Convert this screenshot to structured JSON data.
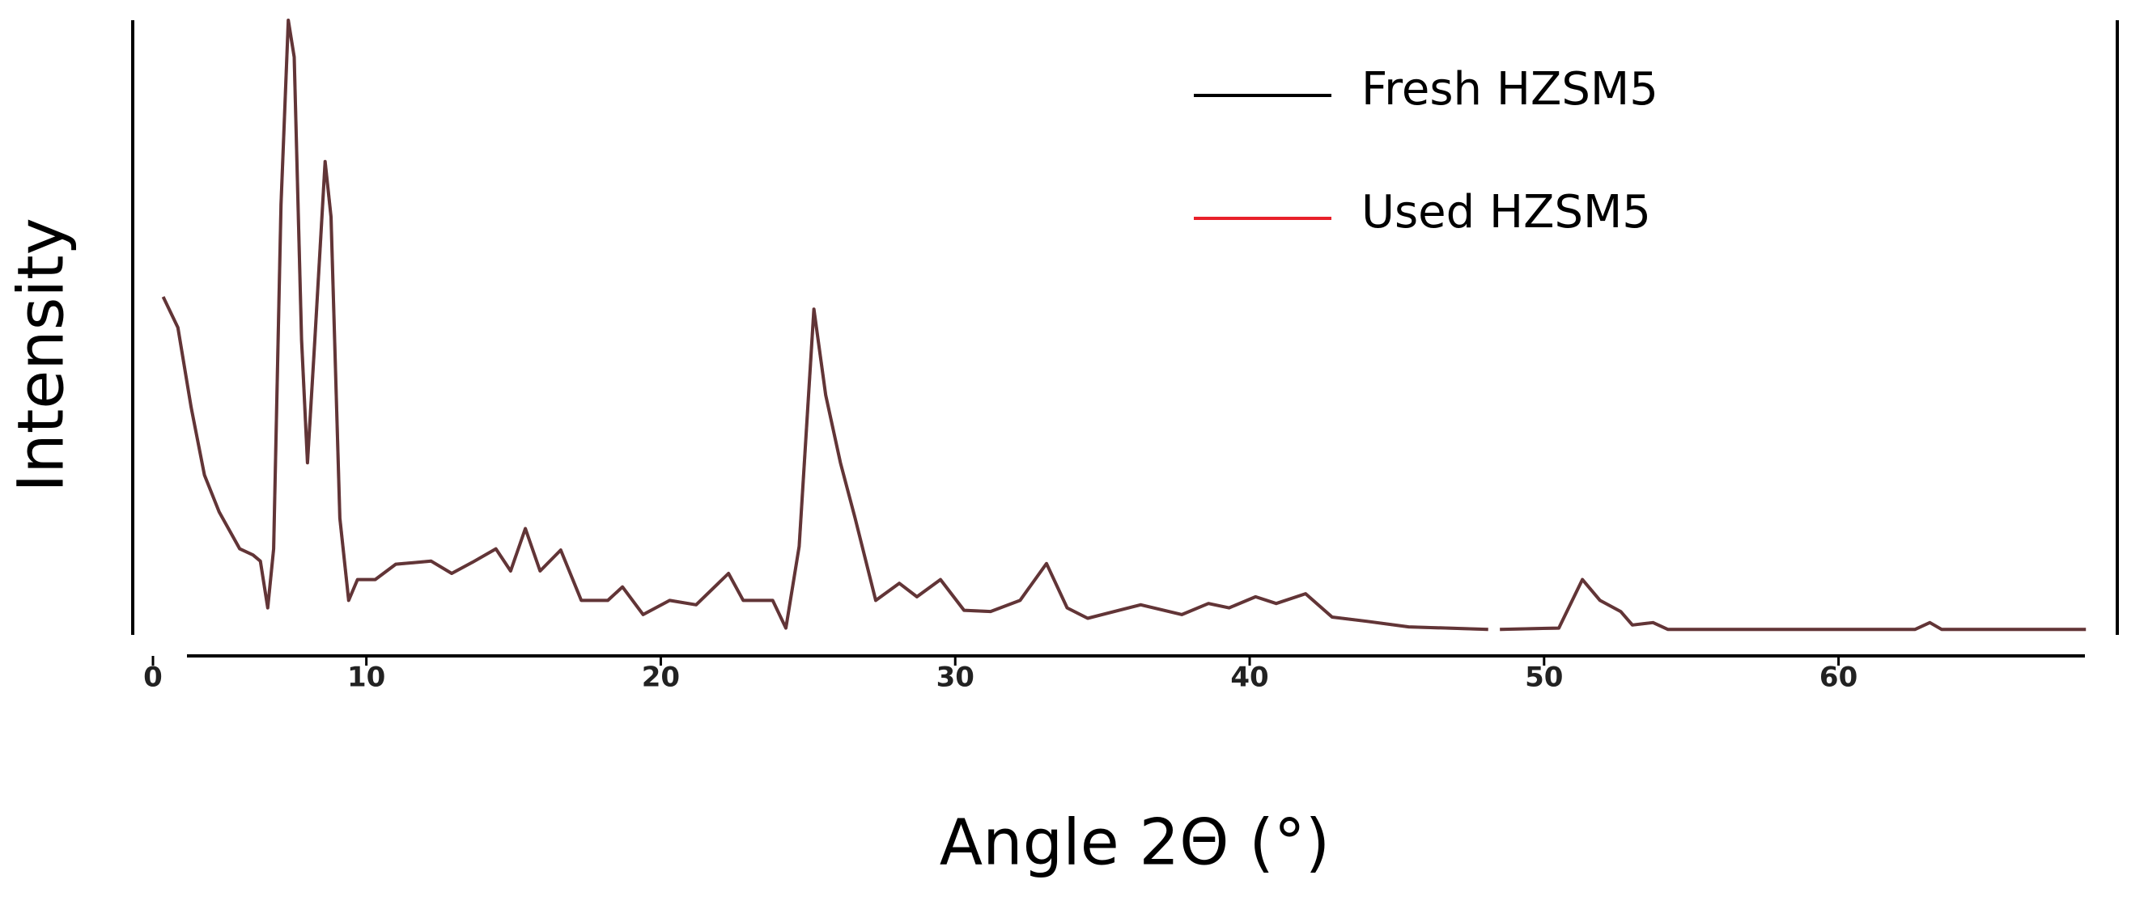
{
  "chart_data": {
    "type": "line",
    "x_label": "Angle 2Θ (°)",
    "y_label": "Intensity",
    "x": [
      3.1,
      3.6,
      4.05,
      4.5,
      5.0,
      5.7,
      6.15,
      6.4,
      6.65,
      6.85,
      7.1,
      7.35,
      7.55,
      7.8,
      8.0,
      8.25,
      8.6,
      8.8,
      9.1,
      9.4,
      9.7,
      10.3,
      11.0,
      12.2,
      12.9,
      13.6,
      14.4,
      14.9,
      15.4,
      15.9,
      16.6,
      17.3,
      18.2,
      18.7,
      19.4,
      20.3,
      21.2,
      22.3,
      22.8,
      23.8,
      24.25,
      24.7,
      25.2,
      25.6,
      26.1,
      26.6,
      27.3,
      28.1,
      28.7,
      29.5,
      30.3,
      31.2,
      32.2,
      33.1,
      33.8,
      34.5,
      36.3,
      37.7,
      38.6,
      39.3,
      40.2,
      40.9,
      41.9,
      42.8,
      44.0,
      45.4,
      48.1,
      48.3,
      48.5,
      50.5,
      51.3,
      51.9,
      52.6,
      53.0,
      53.7,
      54.2,
      62.6,
      63.1,
      63.5,
      68.4
    ],
    "series": [
      {
        "name": "Used HZSM5",
        "color": "#e8202a",
        "values": [
          55,
          50,
          37,
          26,
          20,
          14,
          13,
          12,
          4.4,
          14,
          70,
          100,
          94,
          48,
          28,
          48,
          77,
          68,
          19,
          5.6,
          9,
          9,
          11.5,
          12,
          10,
          11.8,
          14,
          10.4,
          17.3,
          10.4,
          13.8,
          5.6,
          5.6,
          7.8,
          3.3,
          5.6,
          4.9,
          10,
          5.6,
          5.6,
          1.1,
          14.4,
          53,
          39,
          28,
          19,
          5.6,
          8.4,
          6.2,
          9,
          4,
          3.8,
          5.6,
          11.6,
          4.4,
          2.7,
          4.9,
          3.3,
          5.1,
          4.4,
          6.2,
          5.1,
          6.7,
          2.9,
          2.2,
          1.3,
          0.9,
          null,
          0.9,
          1.1,
          9,
          5.6,
          3.8,
          1.6,
          2,
          0.9,
          0.9,
          2,
          0.9,
          0.9
        ]
      },
      {
        "name": "Fresh HZSM5",
        "color": "#000000",
        "values": [
          55,
          50,
          37,
          26,
          20,
          14,
          13,
          12,
          4.4,
          14,
          70,
          100,
          94,
          48,
          28,
          48,
          77,
          68,
          19,
          5.6,
          9,
          9,
          11.5,
          12,
          10,
          11.8,
          14,
          10.4,
          17.3,
          10.4,
          13.8,
          5.6,
          5.6,
          7.8,
          3.3,
          5.6,
          4.9,
          10,
          5.6,
          5.6,
          1.1,
          14.4,
          53,
          39,
          28,
          19,
          5.6,
          8.4,
          6.2,
          9,
          4,
          3.8,
          5.6,
          11.6,
          4.4,
          2.7,
          4.9,
          3.3,
          5.1,
          4.4,
          6.2,
          5.1,
          6.7,
          2.9,
          2.2,
          1.3,
          0.9,
          null,
          0.9,
          1.1,
          9,
          5.6,
          3.8,
          1.6,
          2,
          0.9,
          0.9,
          2,
          0.9,
          0.9
        ]
      }
    ],
    "xlim": [
      3,
      69
    ],
    "xticks": [
      0,
      10,
      20,
      30,
      40,
      50,
      60
    ],
    "ylim": [
      0,
      100
    ],
    "grid": false
  }
}
